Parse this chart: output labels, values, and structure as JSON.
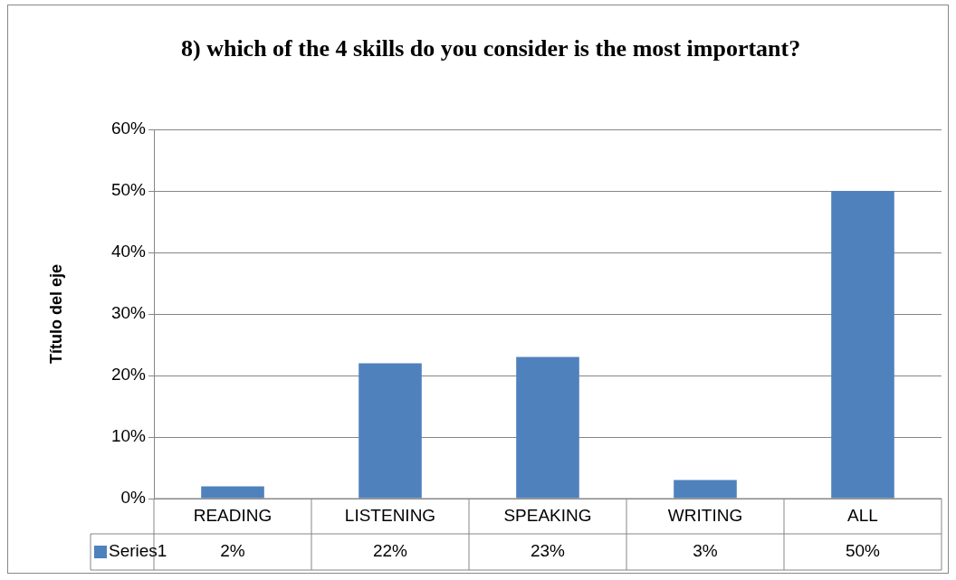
{
  "chart_data": {
    "type": "bar",
    "title": "8) which of the 4 skills do you consider is the most important?",
    "ylabel": "Título del eje",
    "categories": [
      "READING",
      "LISTENING",
      "SPEAKING",
      "WRITING",
      "ALL"
    ],
    "series": [
      {
        "name": "Series1",
        "color": "#4f81bd",
        "values": [
          2,
          22,
          23,
          3,
          50
        ],
        "value_labels": [
          "2%",
          "22%",
          "23%",
          "3%",
          "50%"
        ]
      }
    ],
    "ylim": [
      0,
      60
    ],
    "yticks": [
      {
        "value": 0,
        "label": "0%"
      },
      {
        "value": 10,
        "label": "10%"
      },
      {
        "value": 20,
        "label": "20%"
      },
      {
        "value": 30,
        "label": "30%"
      },
      {
        "value": 40,
        "label": "40%"
      },
      {
        "value": 50,
        "label": "50%"
      },
      {
        "value": 60,
        "label": "60%"
      }
    ],
    "grid": "y",
    "legend": "bottom left"
  }
}
